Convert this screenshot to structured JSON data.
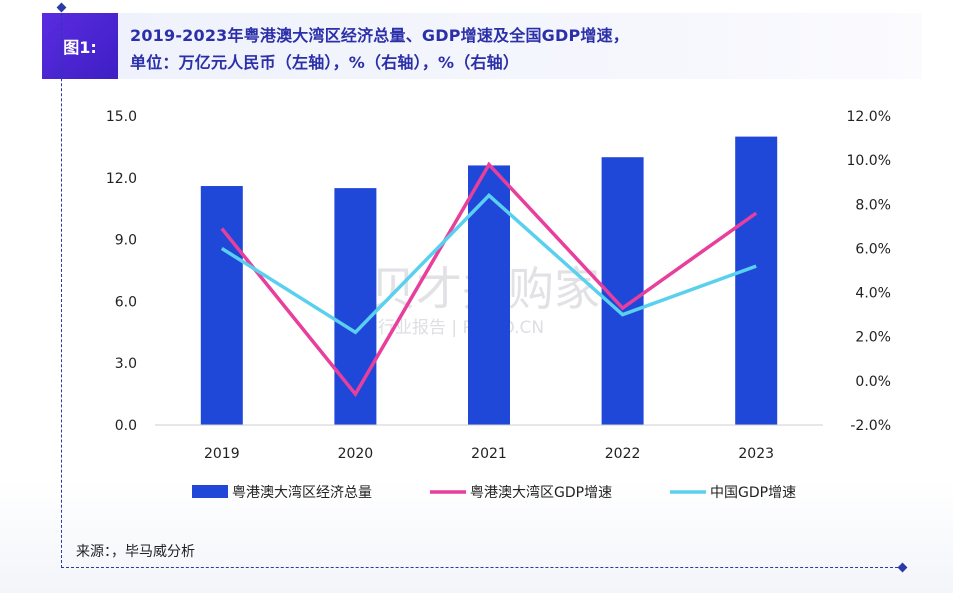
{
  "header": {
    "badge": "图1:",
    "title_line1": "2019-2023年粤港澳大湾区经济总量、GDP增速及全国GDP增速，",
    "title_line2": "单位：万亿元人民币（左轴），%（右轴），%（右轴）"
  },
  "source": "来源：，毕马威分析",
  "watermark": {
    "main": "贝才并购家",
    "sub": "行业报告 | POIPO.CN"
  },
  "colors": {
    "bar": "#2048d8",
    "gba_growth": "#e83e9c",
    "china_growth": "#5ad0ef",
    "frame": "#2c3aa8",
    "title": "#2b2fa8"
  },
  "chart_data": {
    "type": "bar+line",
    "categories": [
      "2019",
      "2020",
      "2021",
      "2022",
      "2023"
    ],
    "left_axis": {
      "range": [
        0,
        15
      ],
      "ticks": [
        "0.0",
        "3.0",
        "6.0",
        "9.0",
        "12.0",
        "15.0"
      ]
    },
    "right_axis": {
      "range": [
        -2,
        12
      ],
      "ticks": [
        "-2.0%",
        "0.0%",
        "2.0%",
        "4.0%",
        "6.0%",
        "8.0%",
        "10.0%",
        "12.0%"
      ]
    },
    "series": [
      {
        "name": "粤港澳大湾区经济总量",
        "type": "bar",
        "axis": "left",
        "values": [
          11.6,
          11.5,
          12.6,
          13.0,
          14.0
        ]
      },
      {
        "name": "粤港澳大湾区GDP增速",
        "type": "line",
        "axis": "right",
        "values": [
          6.9,
          -0.6,
          9.8,
          3.3,
          7.6
        ]
      },
      {
        "name": "中国GDP增速",
        "type": "line",
        "axis": "right",
        "values": [
          6.0,
          2.2,
          8.4,
          3.0,
          5.2
        ]
      }
    ],
    "grid": false,
    "legend_position": "bottom"
  }
}
